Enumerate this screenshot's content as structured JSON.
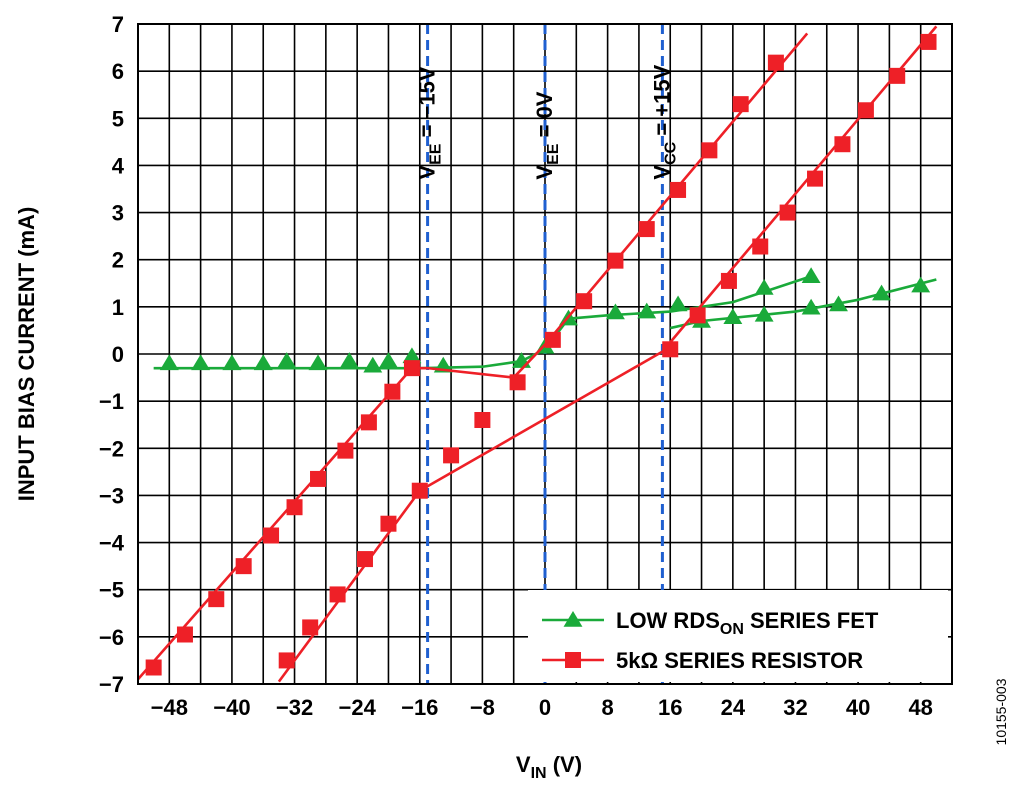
{
  "chart_data": {
    "type": "line",
    "xlabel": {
      "main": "V",
      "sub": "IN",
      "suffix": " (V)"
    },
    "ylabel": "INPUT BIAS CURRENT (mA)",
    "xlim": [
      -52,
      52
    ],
    "ylim": [
      -7,
      7
    ],
    "xticks": [
      -48,
      -40,
      -32,
      -24,
      -16,
      -8,
      0,
      8,
      16,
      24,
      32,
      40,
      48
    ],
    "xtick_labels": [
      "−48",
      "−40",
      "−32",
      "−24",
      "−16",
      "−8",
      "0",
      "8",
      "16",
      "24",
      "32",
      "40",
      "48"
    ],
    "yticks": [
      -7,
      -6,
      -5,
      -4,
      -3,
      -2,
      -1,
      0,
      1,
      2,
      3,
      4,
      5,
      6,
      7
    ],
    "ytick_labels": [
      "−7",
      "−6",
      "−5",
      "−4",
      "−3",
      "−2",
      "−1",
      "0",
      "1",
      "2",
      "3",
      "4",
      "5",
      "6",
      "7"
    ],
    "grid": true,
    "legend_position": "bottom-right",
    "series_colors": {
      "fet": "#1aaa3a",
      "resistor": "#ee2027",
      "reference": "#1f5fd0"
    },
    "series": [
      {
        "legend": {
          "pre": "LOW RDS",
          "sub": "ON",
          "post": " SERIES FET"
        },
        "kind": "fet",
        "line": [
          [
            -50,
            -0.3
          ],
          [
            -16,
            -0.3
          ],
          [
            -8,
            -0.27
          ],
          [
            -3,
            -0.15
          ],
          [
            0,
            0.1
          ],
          [
            3,
            0.75
          ],
          [
            8,
            0.82
          ],
          [
            16,
            0.9
          ],
          [
            24,
            1.1
          ],
          [
            34,
            1.65
          ]
        ],
        "markers": [
          [
            -48,
            -0.2
          ],
          [
            -44,
            -0.2
          ],
          [
            -40,
            -0.2
          ],
          [
            -36,
            -0.2
          ],
          [
            -33,
            -0.15
          ],
          [
            -29,
            -0.2
          ],
          [
            -25,
            -0.15
          ],
          [
            -22,
            -0.25
          ],
          [
            -20,
            -0.15
          ],
          [
            -17,
            -0.05
          ],
          [
            -13,
            -0.25
          ],
          [
            -3,
            -0.15
          ],
          [
            0,
            0.15
          ],
          [
            3,
            0.75
          ],
          [
            9,
            0.88
          ],
          [
            13,
            0.9
          ],
          [
            17,
            1.05
          ],
          [
            28,
            1.4
          ],
          [
            34,
            1.65
          ]
        ]
      },
      {
        "legend": {
          "pre": "LOW RDS",
          "sub": "ON",
          "post": " SERIES FET"
        },
        "kind": "fet",
        "line": [
          [
            16,
            0.55
          ],
          [
            20,
            0.7
          ],
          [
            32,
            0.9
          ],
          [
            40,
            1.15
          ],
          [
            50,
            1.58
          ]
        ],
        "markers": [
          [
            20,
            0.7
          ],
          [
            24,
            0.78
          ],
          [
            28,
            0.83
          ],
          [
            34,
            0.98
          ],
          [
            37.5,
            1.05
          ],
          [
            43,
            1.28
          ],
          [
            48,
            1.45
          ]
        ]
      },
      {
        "legend": {
          "pre": "5kΩ SERIES RESISTOR",
          "sub": "",
          "post": ""
        },
        "kind": "resistor",
        "line": [
          [
            -52,
            -6.9
          ],
          [
            -17,
            -0.3
          ],
          [
            -15,
            -0.3
          ],
          [
            -4,
            -0.5
          ],
          [
            0,
            0.2
          ],
          [
            33.5,
            6.8
          ]
        ],
        "markers": [
          [
            -50,
            -6.65
          ],
          [
            -46,
            -5.95
          ],
          [
            -42,
            -5.2
          ],
          [
            -38.5,
            -4.5
          ],
          [
            -35,
            -3.85
          ],
          [
            -32,
            -3.25
          ],
          [
            -29,
            -2.65
          ],
          [
            -25.5,
            -2.05
          ],
          [
            -22.5,
            -1.45
          ],
          [
            -19.5,
            -0.8
          ],
          [
            -17,
            -0.3
          ],
          [
            -16,
            -2.9
          ],
          [
            -12,
            -2.15
          ],
          [
            -8,
            -1.4
          ],
          [
            -3.5,
            -0.6
          ],
          [
            1,
            0.3
          ],
          [
            5,
            1.12
          ],
          [
            9,
            1.98
          ],
          [
            13,
            2.65
          ],
          [
            17,
            3.48
          ],
          [
            21,
            4.32
          ],
          [
            25,
            5.3
          ],
          [
            29.5,
            6.18
          ]
        ]
      },
      {
        "legend": {
          "pre": "5kΩ SERIES RESISTOR",
          "sub": "",
          "post": ""
        },
        "kind": "resistor",
        "line": [
          [
            -34,
            -6.95
          ],
          [
            -16,
            -2.9
          ],
          [
            -16,
            -2.9
          ],
          [
            15,
            0.05
          ],
          [
            50,
            6.95
          ]
        ],
        "markers": [
          [
            -33,
            -6.5
          ],
          [
            -30,
            -5.8
          ],
          [
            -26.5,
            -5.1
          ],
          [
            -23,
            -4.35
          ],
          [
            -20,
            -3.6
          ],
          [
            16,
            0.1
          ],
          [
            19.5,
            0.82
          ],
          [
            23.5,
            1.55
          ],
          [
            27.5,
            2.28
          ],
          [
            31,
            3.0
          ],
          [
            34.5,
            3.72
          ],
          [
            38,
            4.45
          ],
          [
            41,
            5.17
          ],
          [
            45,
            5.9
          ],
          [
            49,
            6.62
          ]
        ]
      }
    ],
    "reference_lines": [
      {
        "x": -15,
        "label": {
          "pre": "V",
          "sub": "EE",
          "post": " = −15V"
        }
      },
      {
        "x": 0,
        "label": {
          "pre": "V",
          "sub": "EE",
          "post": " = 0V"
        }
      },
      {
        "x": 15,
        "label": {
          "pre": "V",
          "sub": "CC",
          "post": " = +15V"
        }
      }
    ],
    "legend": [
      {
        "kind": "fet",
        "pre": "LOW RDS",
        "sub": "ON",
        "post": " SERIES FET"
      },
      {
        "kind": "resistor",
        "pre": "5kΩ SERIES RESISTOR",
        "sub": "",
        "post": ""
      }
    ]
  },
  "figure_id": "10155-003"
}
